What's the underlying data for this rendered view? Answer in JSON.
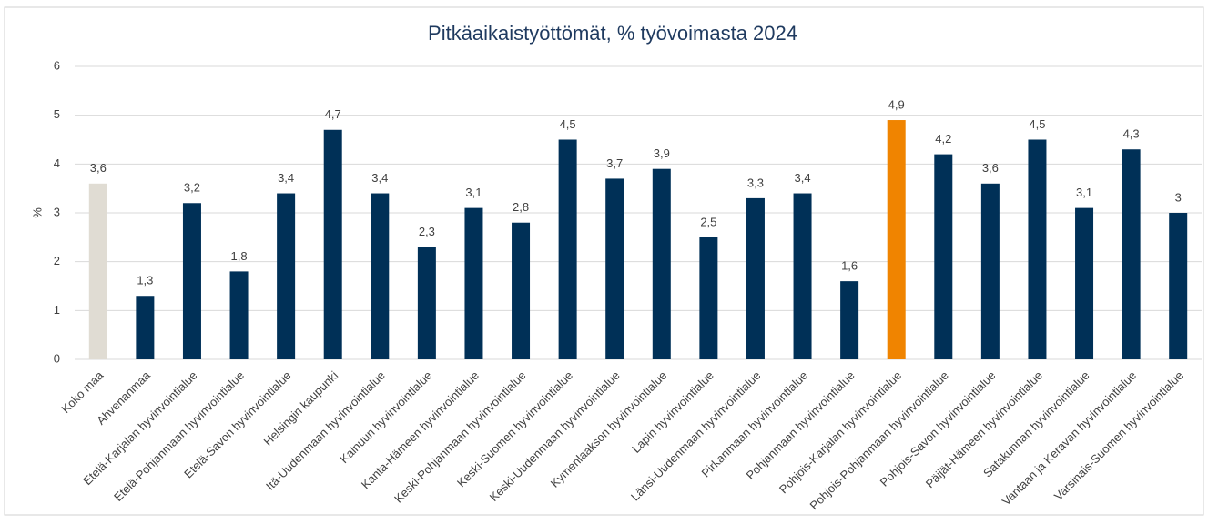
{
  "chart_data": {
    "type": "bar",
    "title": "Pitkäaikaistyöttömät, % työvoimasta 2024",
    "y_label": "%",
    "categories": [
      "Koko maa",
      "Ahvenanmaa",
      "Etelä-Karjalan hyvinvointialue",
      "Etelä-Pohjanmaan hyvinvointialue",
      "Etelä-Savon hyvinvointialue",
      "Helsingin kaupunki",
      "Itä-Uudenmaan hyvinvointialue",
      "Kainuun hyvinvointialue",
      "Kanta-Hämeen hyvinvointialue",
      "Keski-Pohjanmaan hyvinvointialue",
      "Keski-Suomen hyvinvointialue",
      "Keski-Uudenmaan hyvinvointialue",
      "Kymenlaakson hyvinvointialue",
      "Lapin hyvinvointialue",
      "Länsi-Uudenmaan hyvinvointialue",
      "Pirkanmaan hyvinvointialue",
      "Pohjanmaan hyvinvointialue",
      "Pohjois-Karjalan hyvinvointialue",
      "Pohjois-Pohjanmaan hyvinvointialue",
      "Pohjois-Savon hyvinvointialue",
      "Päijät-Hämeen hyvinvointialue",
      "Satakunnan hyvinvointialue",
      "Vantaan ja Keravan hyvinvointialue",
      "Varsinais-Suomen hyvinvointialue"
    ],
    "values": [
      3.6,
      1.3,
      3.2,
      1.8,
      3.4,
      4.7,
      3.4,
      2.3,
      3.1,
      2.8,
      4.5,
      3.7,
      3.9,
      2.5,
      3.3,
      3.4,
      1.6,
      4.9,
      4.2,
      3.6,
      4.5,
      3.1,
      4.3,
      3
    ],
    "value_labels": [
      "3,6",
      "1,3",
      "3,2",
      "1,8",
      "3,4",
      "4,7",
      "3,4",
      "2,3",
      "3,1",
      "2,8",
      "4,5",
      "3,7",
      "3,9",
      "2,5",
      "3,3",
      "3,4",
      "1,6",
      "4,9",
      "4,2",
      "3,6",
      "4,5",
      "3,1",
      "4,3",
      "3"
    ],
    "colors": [
      "#e0dcd3",
      "#003057",
      "#003057",
      "#003057",
      "#003057",
      "#003057",
      "#003057",
      "#003057",
      "#003057",
      "#003057",
      "#003057",
      "#003057",
      "#003057",
      "#003057",
      "#003057",
      "#003057",
      "#003057",
      "#f08400",
      "#003057",
      "#003057",
      "#003057",
      "#003057",
      "#003057",
      "#003057"
    ],
    "ylim": [
      0,
      6
    ],
    "yticks": [
      0,
      1,
      2,
      3,
      4,
      5,
      6
    ],
    "grid": true
  }
}
